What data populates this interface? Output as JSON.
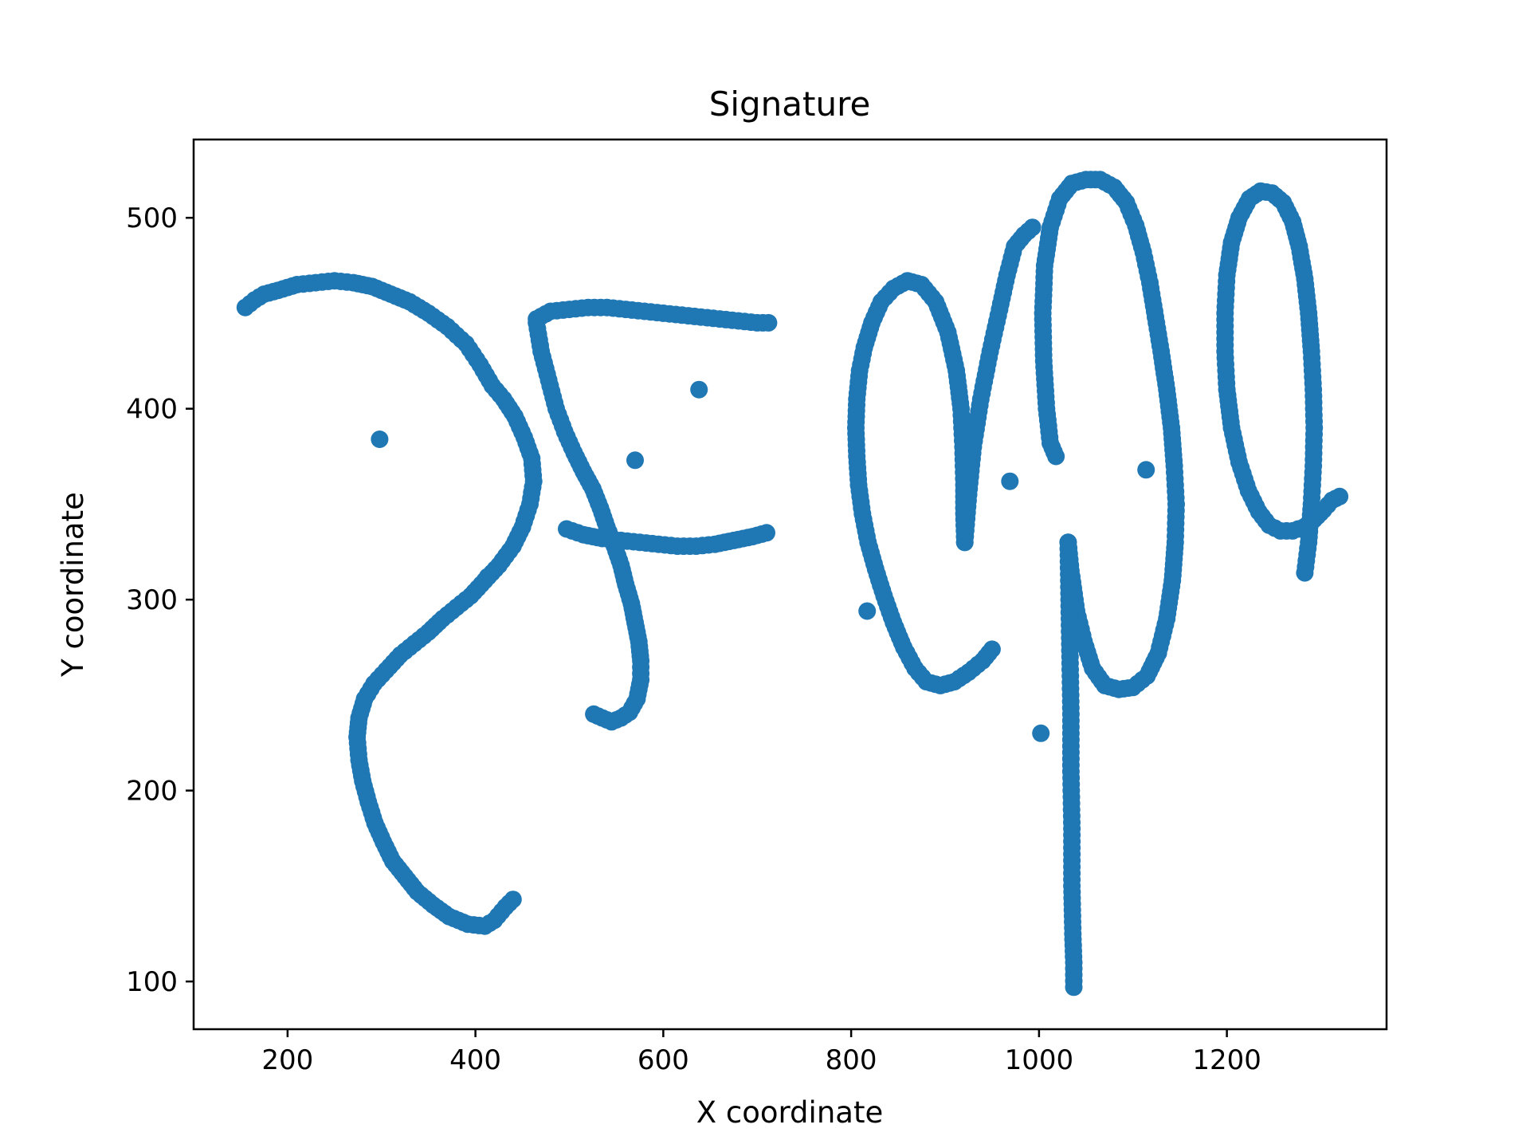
{
  "chart_data": {
    "type": "scatter",
    "title": "Signature",
    "xlabel": "X coordinate",
    "ylabel": "Y coordinate",
    "xlim": [
      100,
      1370
    ],
    "ylim": [
      75,
      541
    ],
    "xticks": [
      200,
      400,
      600,
      800,
      1000,
      1200
    ],
    "yticks": [
      100,
      200,
      300,
      400,
      500
    ],
    "grid": false,
    "legend": "none",
    "color": "#1f77b4",
    "strokes": [
      [
        [
          155,
          453
        ],
        [
          165,
          457
        ],
        [
          175,
          460
        ],
        [
          190,
          462
        ],
        [
          210,
          465
        ],
        [
          230,
          466
        ],
        [
          250,
          467
        ],
        [
          270,
          466
        ],
        [
          290,
          464
        ],
        [
          310,
          460
        ],
        [
          330,
          456
        ],
        [
          350,
          450
        ],
        [
          370,
          443
        ],
        [
          390,
          434
        ],
        [
          405,
          423
        ],
        [
          418,
          412
        ],
        [
          430,
          405
        ],
        [
          442,
          396
        ],
        [
          452,
          385
        ],
        [
          460,
          374
        ],
        [
          462,
          362
        ],
        [
          458,
          350
        ],
        [
          450,
          338
        ],
        [
          440,
          328
        ],
        [
          425,
          318
        ],
        [
          410,
          310
        ],
        [
          395,
          302
        ],
        [
          380,
          296
        ],
        [
          365,
          290
        ],
        [
          350,
          283
        ],
        [
          335,
          277
        ],
        [
          320,
          271
        ],
        [
          305,
          263
        ],
        [
          292,
          256
        ],
        [
          282,
          248
        ],
        [
          276,
          238
        ],
        [
          274,
          228
        ],
        [
          276,
          216
        ],
        [
          280,
          205
        ],
        [
          286,
          194
        ],
        [
          293,
          183
        ],
        [
          302,
          173
        ],
        [
          312,
          163
        ],
        [
          325,
          155
        ],
        [
          338,
          147
        ],
        [
          355,
          140
        ],
        [
          372,
          134
        ],
        [
          392,
          130
        ],
        [
          410,
          129
        ],
        [
          420,
          132
        ],
        [
          432,
          139
        ],
        [
          440,
          143
        ]
      ],
      [
        [
          465,
          447
        ],
        [
          480,
          451
        ],
        [
          500,
          452
        ],
        [
          520,
          453
        ],
        [
          540,
          453
        ],
        [
          560,
          452
        ],
        [
          580,
          451
        ],
        [
          600,
          450
        ],
        [
          620,
          449
        ],
        [
          640,
          448
        ],
        [
          660,
          447
        ],
        [
          680,
          446
        ],
        [
          700,
          445
        ],
        [
          712,
          445
        ]
      ],
      [
        [
          465,
          445
        ],
        [
          470,
          430
        ],
        [
          478,
          415
        ],
        [
          486,
          400
        ],
        [
          495,
          388
        ],
        [
          505,
          377
        ],
        [
          515,
          367
        ],
        [
          525,
          358
        ],
        [
          533,
          348
        ],
        [
          540,
          338
        ],
        [
          548,
          328
        ],
        [
          555,
          318
        ],
        [
          560,
          308
        ],
        [
          566,
          298
        ],
        [
          570,
          288
        ],
        [
          574,
          278
        ],
        [
          576,
          268
        ],
        [
          576,
          258
        ],
        [
          572,
          248
        ],
        [
          564,
          241
        ],
        [
          555,
          238
        ],
        [
          545,
          236
        ],
        [
          535,
          238
        ],
        [
          526,
          240
        ]
      ],
      [
        [
          497,
          337
        ],
        [
          515,
          334
        ],
        [
          535,
          332
        ],
        [
          555,
          331
        ],
        [
          575,
          330
        ],
        [
          595,
          329
        ],
        [
          615,
          328
        ],
        [
          635,
          328
        ],
        [
          655,
          329
        ],
        [
          675,
          331
        ],
        [
          695,
          333
        ],
        [
          710,
          335
        ]
      ],
      [
        [
          298,
          384
        ]
      ],
      [
        [
          413,
          312
        ]
      ],
      [
        [
          570,
          373
        ]
      ],
      [
        [
          638,
          410
        ]
      ],
      [
        [
          950,
          274
        ],
        [
          940,
          268
        ],
        [
          925,
          262
        ],
        [
          910,
          257
        ],
        [
          895,
          255
        ],
        [
          880,
          257
        ],
        [
          868,
          264
        ],
        [
          856,
          275
        ],
        [
          845,
          288
        ],
        [
          835,
          302
        ],
        [
          826,
          316
        ],
        [
          818,
          330
        ],
        [
          812,
          345
        ],
        [
          808,
          360
        ],
        [
          806,
          375
        ],
        [
          805,
          390
        ],
        [
          806,
          405
        ],
        [
          809,
          420
        ],
        [
          814,
          432
        ],
        [
          822,
          445
        ],
        [
          832,
          456
        ],
        [
          845,
          463
        ],
        [
          860,
          467
        ],
        [
          875,
          465
        ],
        [
          890,
          456
        ],
        [
          903,
          440
        ],
        [
          912,
          420
        ],
        [
          917,
          400
        ],
        [
          919,
          380
        ],
        [
          920,
          360
        ],
        [
          920,
          345
        ],
        [
          921,
          330
        ]
      ],
      [
        [
          921,
          330
        ],
        [
          925,
          355
        ],
        [
          930,
          380
        ],
        [
          938,
          405
        ],
        [
          948,
          430
        ],
        [
          958,
          452
        ],
        [
          966,
          470
        ],
        [
          974,
          485
        ],
        [
          984,
          491
        ],
        [
          993,
          495
        ]
      ],
      [
        [
          817,
          294
        ]
      ],
      [
        [
          1018,
          375
        ],
        [
          1012,
          382
        ],
        [
          1008,
          400
        ],
        [
          1005,
          425
        ],
        [
          1004,
          450
        ],
        [
          1006,
          475
        ],
        [
          1012,
          495
        ],
        [
          1022,
          510
        ],
        [
          1035,
          518
        ],
        [
          1050,
          520
        ],
        [
          1065,
          520
        ],
        [
          1080,
          516
        ],
        [
          1093,
          508
        ],
        [
          1103,
          496
        ],
        [
          1111,
          482
        ],
        [
          1118,
          466
        ],
        [
          1124,
          448
        ],
        [
          1130,
          430
        ],
        [
          1136,
          410
        ],
        [
          1141,
          390
        ],
        [
          1144,
          370
        ],
        [
          1146,
          350
        ],
        [
          1145,
          330
        ],
        [
          1142,
          310
        ],
        [
          1136,
          290
        ],
        [
          1127,
          272
        ],
        [
          1115,
          260
        ],
        [
          1100,
          254
        ],
        [
          1085,
          253
        ],
        [
          1070,
          255
        ],
        [
          1057,
          264
        ],
        [
          1048,
          278
        ],
        [
          1040,
          294
        ],
        [
          1034,
          315
        ],
        [
          1031,
          330
        ]
      ],
      [
        [
          1031,
          330
        ],
        [
          1032,
          300
        ],
        [
          1033,
          270
        ],
        [
          1034,
          240
        ],
        [
          1034,
          210
        ],
        [
          1035,
          180
        ],
        [
          1035,
          150
        ],
        [
          1036,
          125
        ],
        [
          1037,
          110
        ],
        [
          1037,
          97
        ]
      ],
      [
        [
          969,
          362
        ]
      ],
      [
        [
          1002,
          230
        ]
      ],
      [
        [
          1114,
          368
        ]
      ],
      [
        [
          1283,
          314
        ],
        [
          1287,
          330
        ],
        [
          1290,
          350
        ],
        [
          1292,
          370
        ],
        [
          1293,
          390
        ],
        [
          1292,
          410
        ],
        [
          1290,
          430
        ],
        [
          1287,
          450
        ],
        [
          1283,
          468
        ],
        [
          1277,
          485
        ],
        [
          1270,
          498
        ],
        [
          1260,
          508
        ],
        [
          1248,
          513
        ],
        [
          1236,
          514
        ],
        [
          1224,
          510
        ],
        [
          1213,
          500
        ],
        [
          1205,
          487
        ],
        [
          1200,
          470
        ],
        [
          1198,
          450
        ],
        [
          1198,
          430
        ],
        [
          1200,
          410
        ],
        [
          1205,
          390
        ],
        [
          1213,
          372
        ],
        [
          1223,
          357
        ],
        [
          1234,
          346
        ],
        [
          1245,
          339
        ],
        [
          1257,
          336
        ],
        [
          1270,
          336
        ],
        [
          1282,
          338
        ],
        [
          1293,
          342
        ],
        [
          1303,
          347
        ],
        [
          1312,
          352
        ],
        [
          1320,
          354
        ]
      ]
    ]
  }
}
